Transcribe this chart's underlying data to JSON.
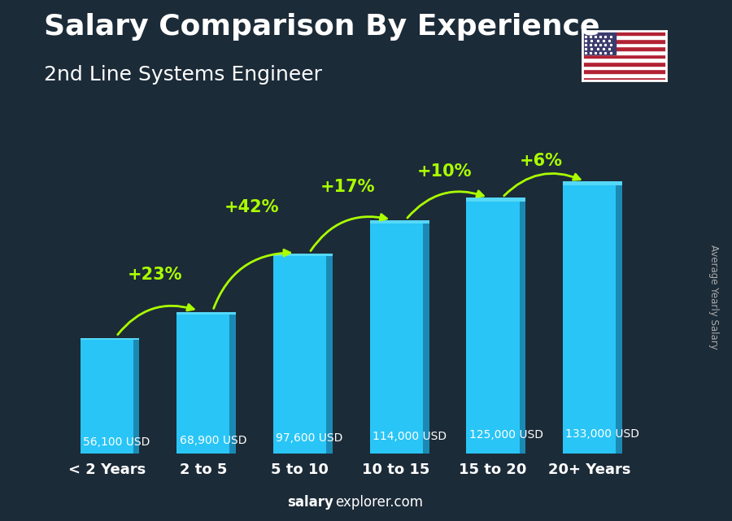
{
  "title": "Salary Comparison By Experience",
  "subtitle": "2nd Line Systems Engineer",
  "categories": [
    "< 2 Years",
    "2 to 5",
    "5 to 10",
    "10 to 15",
    "15 to 20",
    "20+ Years"
  ],
  "values": [
    56100,
    68900,
    97600,
    114000,
    125000,
    133000
  ],
  "value_labels": [
    "56,100 USD",
    "68,900 USD",
    "97,600 USD",
    "114,000 USD",
    "125,000 USD",
    "133,000 USD"
  ],
  "pct_changes": [
    "+23%",
    "+42%",
    "+17%",
    "+10%",
    "+6%"
  ],
  "bar_color_face": "#29c5f6",
  "bar_color_side": "#1a8ab5",
  "bar_color_top": "#55d8f8",
  "background_color": "#1c2b38",
  "text_color_white": "#ffffff",
  "text_color_green": "#aaff00",
  "text_color_gray": "#aaaaaa",
  "text_color_cyan": "#29c5f6",
  "ylabel": "Average Yearly Salary",
  "footer_bold": "salary",
  "footer_normal": "explorer.com",
  "ylim_max": 155000,
  "title_fontsize": 26,
  "subtitle_fontsize": 18,
  "category_fontsize": 13,
  "value_fontsize": 10,
  "pct_fontsize": 15,
  "arc_offsets": [
    0.1,
    0.13,
    0.09,
    0.07,
    0.05
  ]
}
